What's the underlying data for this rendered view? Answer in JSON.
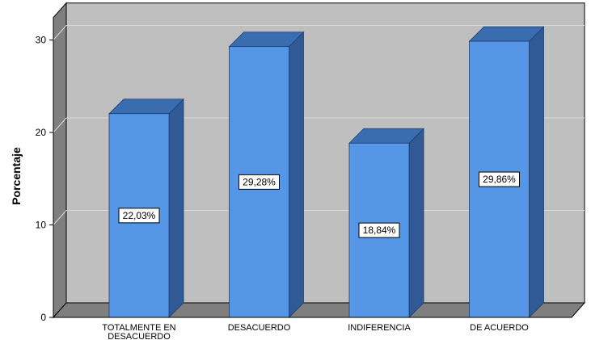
{
  "chart_data": {
    "type": "bar",
    "title": "",
    "xlabel": "",
    "ylabel": "Porcentaje",
    "ylim": [
      0,
      34
    ],
    "yticks": [
      0,
      10,
      20,
      30
    ],
    "categories": [
      "TOTALMENTE EN DESACUERDO",
      "DESACUERDO",
      "INDIFERENCIA",
      "DE ACUERDO"
    ],
    "values": [
      22.03,
      29.28,
      18.84,
      29.86
    ],
    "data_labels": [
      "22,03%",
      "29,28%",
      "18,84%",
      "29,86%"
    ],
    "grid": true,
    "style": "3d",
    "colors": {
      "bar_front": "#5596e6",
      "bar_top": "#3a6db0",
      "bar_side": "#2f5a95",
      "plot_back": "#bfbfbf",
      "plot_floor": "#7f7f7f",
      "plot_wall": "#7f7f7f",
      "gridline": "#d9d9d9"
    }
  }
}
